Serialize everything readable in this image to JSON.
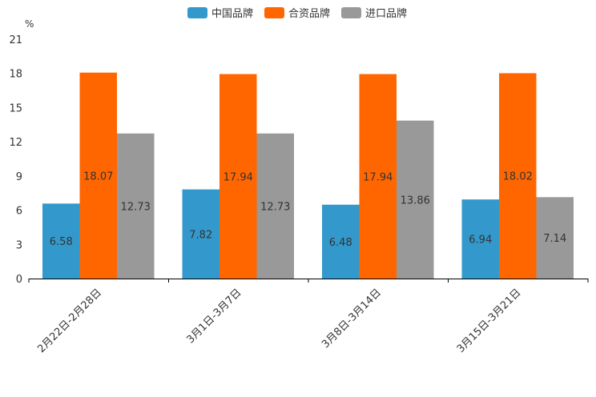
{
  "chart_data": {
    "type": "bar",
    "title": "",
    "unit": "%",
    "xlabel": "",
    "ylabel": "%",
    "ylim": [
      0,
      21
    ],
    "yticks": [
      "0",
      "3",
      "6",
      "9",
      "12",
      "15",
      "18",
      "21"
    ],
    "categories": [
      "2月22日-2月28日",
      "3月1日-3月7日",
      "3月8日-3月14日",
      "3月15日-3月21日"
    ],
    "series": [
      {
        "name": "中国品牌",
        "color": "#3399cc",
        "values": [
          6.58,
          7.82,
          6.48,
          6.94
        ],
        "labels": [
          "6.58",
          "7.82",
          "6.48",
          "6.94"
        ]
      },
      {
        "name": "合资品牌",
        "color": "#ff6600",
        "values": [
          18.07,
          17.94,
          17.94,
          18.02
        ],
        "labels": [
          "18.07",
          "17.94",
          "17.94",
          "18.02"
        ]
      },
      {
        "name": "进口品牌",
        "color": "#999999",
        "values": [
          12.73,
          12.73,
          13.86,
          7.14
        ],
        "labels": [
          "12.73",
          "12.73",
          "13.86",
          "7.14"
        ]
      }
    ],
    "legend_position": "top-center",
    "grid": false
  }
}
